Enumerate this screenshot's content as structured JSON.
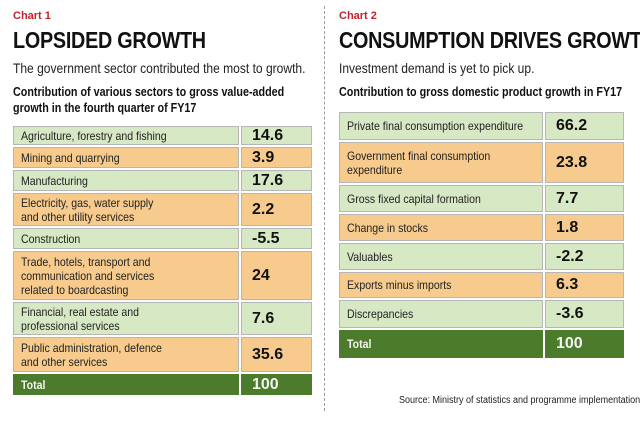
{
  "chart_data": [
    {
      "type": "table",
      "chart_label": "Chart 1",
      "title": "LOPSIDED GROWTH",
      "subtitle": "The government sector contributed the most to growth.",
      "table_heading": [
        "Contribution of various sectors to gross value-added",
        "growth in the fourth quarter of FY17"
      ],
      "rows": [
        {
          "label": [
            "Agriculture, forestry and fishing"
          ],
          "value": "14.6"
        },
        {
          "label": [
            "Mining and quarrying"
          ],
          "value": "3.9"
        },
        {
          "label": [
            "Manufacturing"
          ],
          "value": "17.6"
        },
        {
          "label": [
            "Electricity, gas, water supply",
            "and other utility services"
          ],
          "value": "2.2"
        },
        {
          "label": [
            "Construction"
          ],
          "value": "-5.5"
        },
        {
          "label": [
            "Trade, hotels, transport and",
            "communication and services",
            "related to boardcasting"
          ],
          "value": "24"
        },
        {
          "label": [
            "Financial, real estate and",
            "professional services"
          ],
          "value": "7.6"
        },
        {
          "label": [
            "Public administration, defence",
            "and other services"
          ],
          "value": "35.6"
        }
      ],
      "total": {
        "label": "Total",
        "value": "100"
      }
    },
    {
      "type": "table",
      "chart_label": "Chart 2",
      "title": "CONSUMPTION DRIVES GROWTH",
      "subtitle": "Investment demand is yet to pick up.",
      "table_heading": [
        "Contribution to gross domestic product growth in FY17"
      ],
      "rows": [
        {
          "label": [
            "Private final consumption expenditure"
          ],
          "value": "66.2"
        },
        {
          "label": [
            "Government final consumption",
            "expenditure"
          ],
          "value": "23.8"
        },
        {
          "label": [
            "Gross fixed capital formation"
          ],
          "value": "7.7"
        },
        {
          "label": [
            "Change in stocks"
          ],
          "value": "1.8"
        },
        {
          "label": [
            "Valuables"
          ],
          "value": "-2.2"
        },
        {
          "label": [
            "Exports minus imports"
          ],
          "value": "6.3"
        },
        {
          "label": [
            "Discrepancies"
          ],
          "value": "-3.6"
        }
      ],
      "total": {
        "label": "Total",
        "value": "100"
      }
    }
  ],
  "source": "Source: Ministry of statistics and programme implementation",
  "colors": {
    "chart_label": "#c2232b",
    "row_green": "#d7e8c5",
    "row_orange": "#f6cb8d",
    "total_green": "#4c7b2b"
  }
}
